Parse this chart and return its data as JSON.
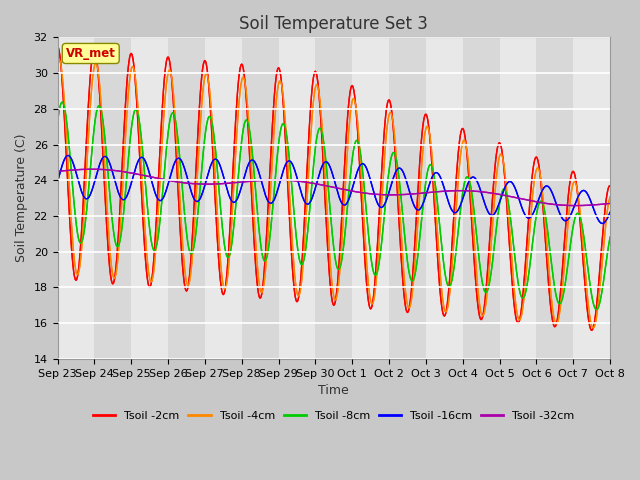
{
  "title": "Soil Temperature Set 3",
  "xlabel": "Time",
  "ylabel": "Soil Temperature (C)",
  "ylim": [
    14,
    32
  ],
  "yticks": [
    14,
    16,
    18,
    20,
    22,
    24,
    26,
    28,
    30,
    32
  ],
  "x_labels": [
    "Sep 23",
    "Sep 24",
    "Sep 25",
    "Sep 26",
    "Sep 27",
    "Sep 28",
    "Sep 29",
    "Sep 30",
    "Oct 1",
    "Oct 2",
    "Oct 3",
    "Oct 4",
    "Oct 5",
    "Oct 6",
    "Oct 7",
    "Oct 8"
  ],
  "colors": {
    "Tsoil -2cm": "#ff0000",
    "Tsoil -4cm": "#ff8800",
    "Tsoil -8cm": "#00cc00",
    "Tsoil -16cm": "#0000ff",
    "Tsoil -32cm": "#aa00aa"
  },
  "legend_labels": [
    "Tsoil -2cm",
    "Tsoil -4cm",
    "Tsoil -8cm",
    "Tsoil -16cm",
    "Tsoil -32cm"
  ],
  "annotation_text": "VR_met",
  "annotation_color": "#cc0000",
  "annotation_bg": "#ffff99",
  "plot_bg": "#f0f0f0",
  "grid_color": "#ffffff",
  "title_fontsize": 12,
  "axis_fontsize": 9,
  "tick_fontsize": 8,
  "n_days": 15,
  "n_per_day": 48
}
